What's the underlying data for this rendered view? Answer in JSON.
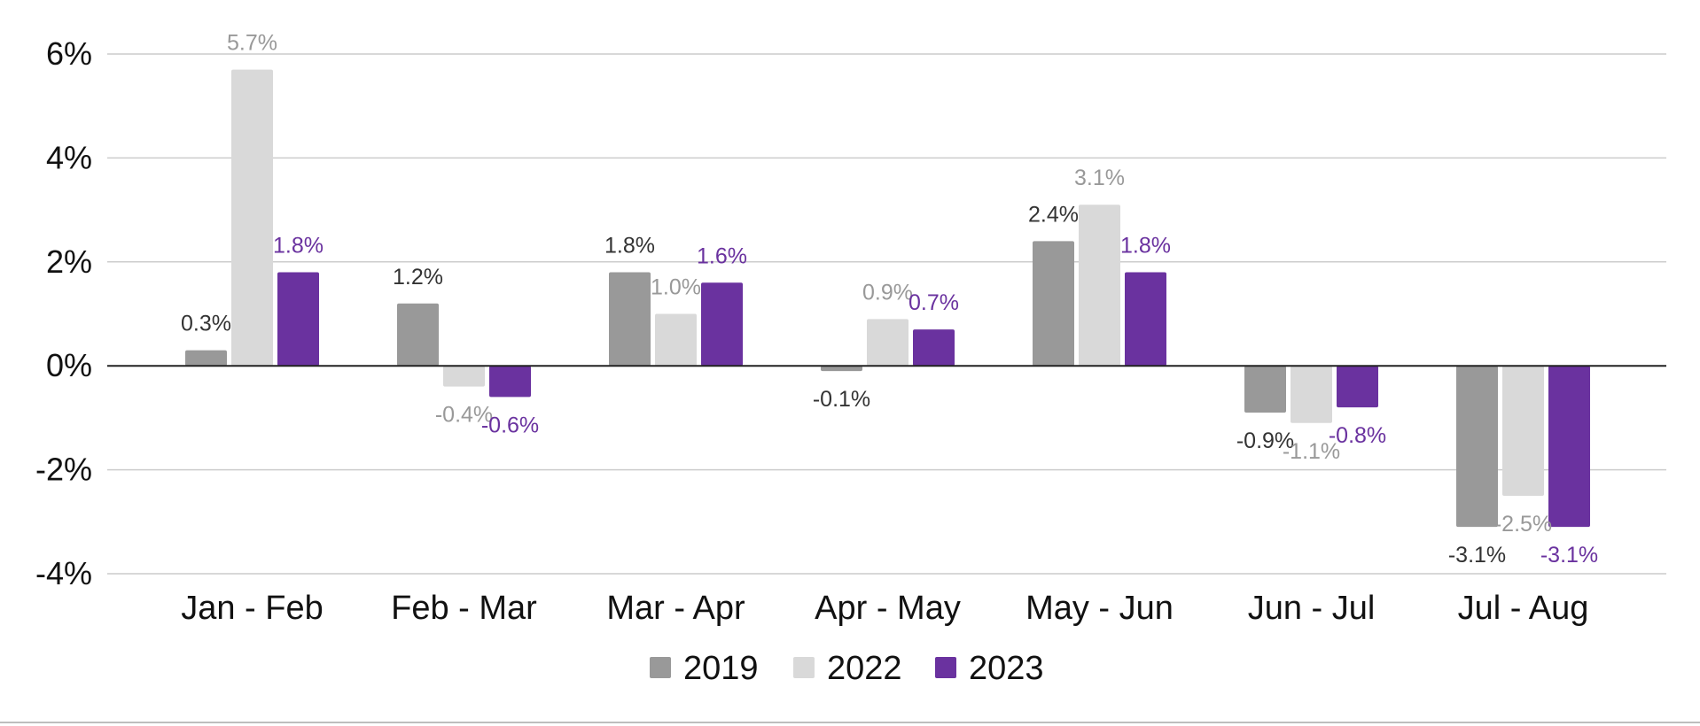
{
  "chart_data": {
    "type": "bar",
    "categories": [
      "Jan - Feb",
      "Feb - Mar",
      "Mar - Apr",
      "Apr - May",
      "May - Jun",
      "Jun - Jul",
      "Jul - Aug"
    ],
    "series": [
      {
        "name": "2019",
        "color": "#999999",
        "label_color": "#333333",
        "values": [
          0.3,
          1.2,
          1.8,
          -0.1,
          2.4,
          -0.9,
          -3.1
        ],
        "labels": [
          "0.3%",
          "1.2%",
          "1.8%",
          "-0.1%",
          "2.4%",
          "-0.9%",
          "-3.1%"
        ]
      },
      {
        "name": "2022",
        "color": "#d9d9d9",
        "label_color": "#999999",
        "values": [
          5.7,
          -0.4,
          1.0,
          0.9,
          3.1,
          -1.1,
          -2.5
        ],
        "labels": [
          "5.7%",
          "-0.4%",
          "1.0%",
          "0.9%",
          "3.1%",
          "-1.1%",
          "-2.5%"
        ]
      },
      {
        "name": "2023",
        "color": "#6a329f",
        "label_color": "#6a329f",
        "values": [
          1.8,
          -0.6,
          1.6,
          0.7,
          1.8,
          -0.8,
          -3.1
        ],
        "labels": [
          "1.8%",
          "-0.6%",
          "1.6%",
          "0.7%",
          "1.8%",
          "-0.8%",
          "-3.1%"
        ]
      }
    ],
    "y_ticks": [
      6,
      4,
      2,
      0,
      -2,
      -4
    ],
    "y_tick_labels": [
      "6%",
      "4%",
      "2%",
      "0%",
      "-2%",
      "-4%"
    ],
    "ylim": [
      -4,
      6
    ],
    "grid": true,
    "legend_position": "bottom",
    "title": "",
    "xlabel": "",
    "ylabel": ""
  }
}
